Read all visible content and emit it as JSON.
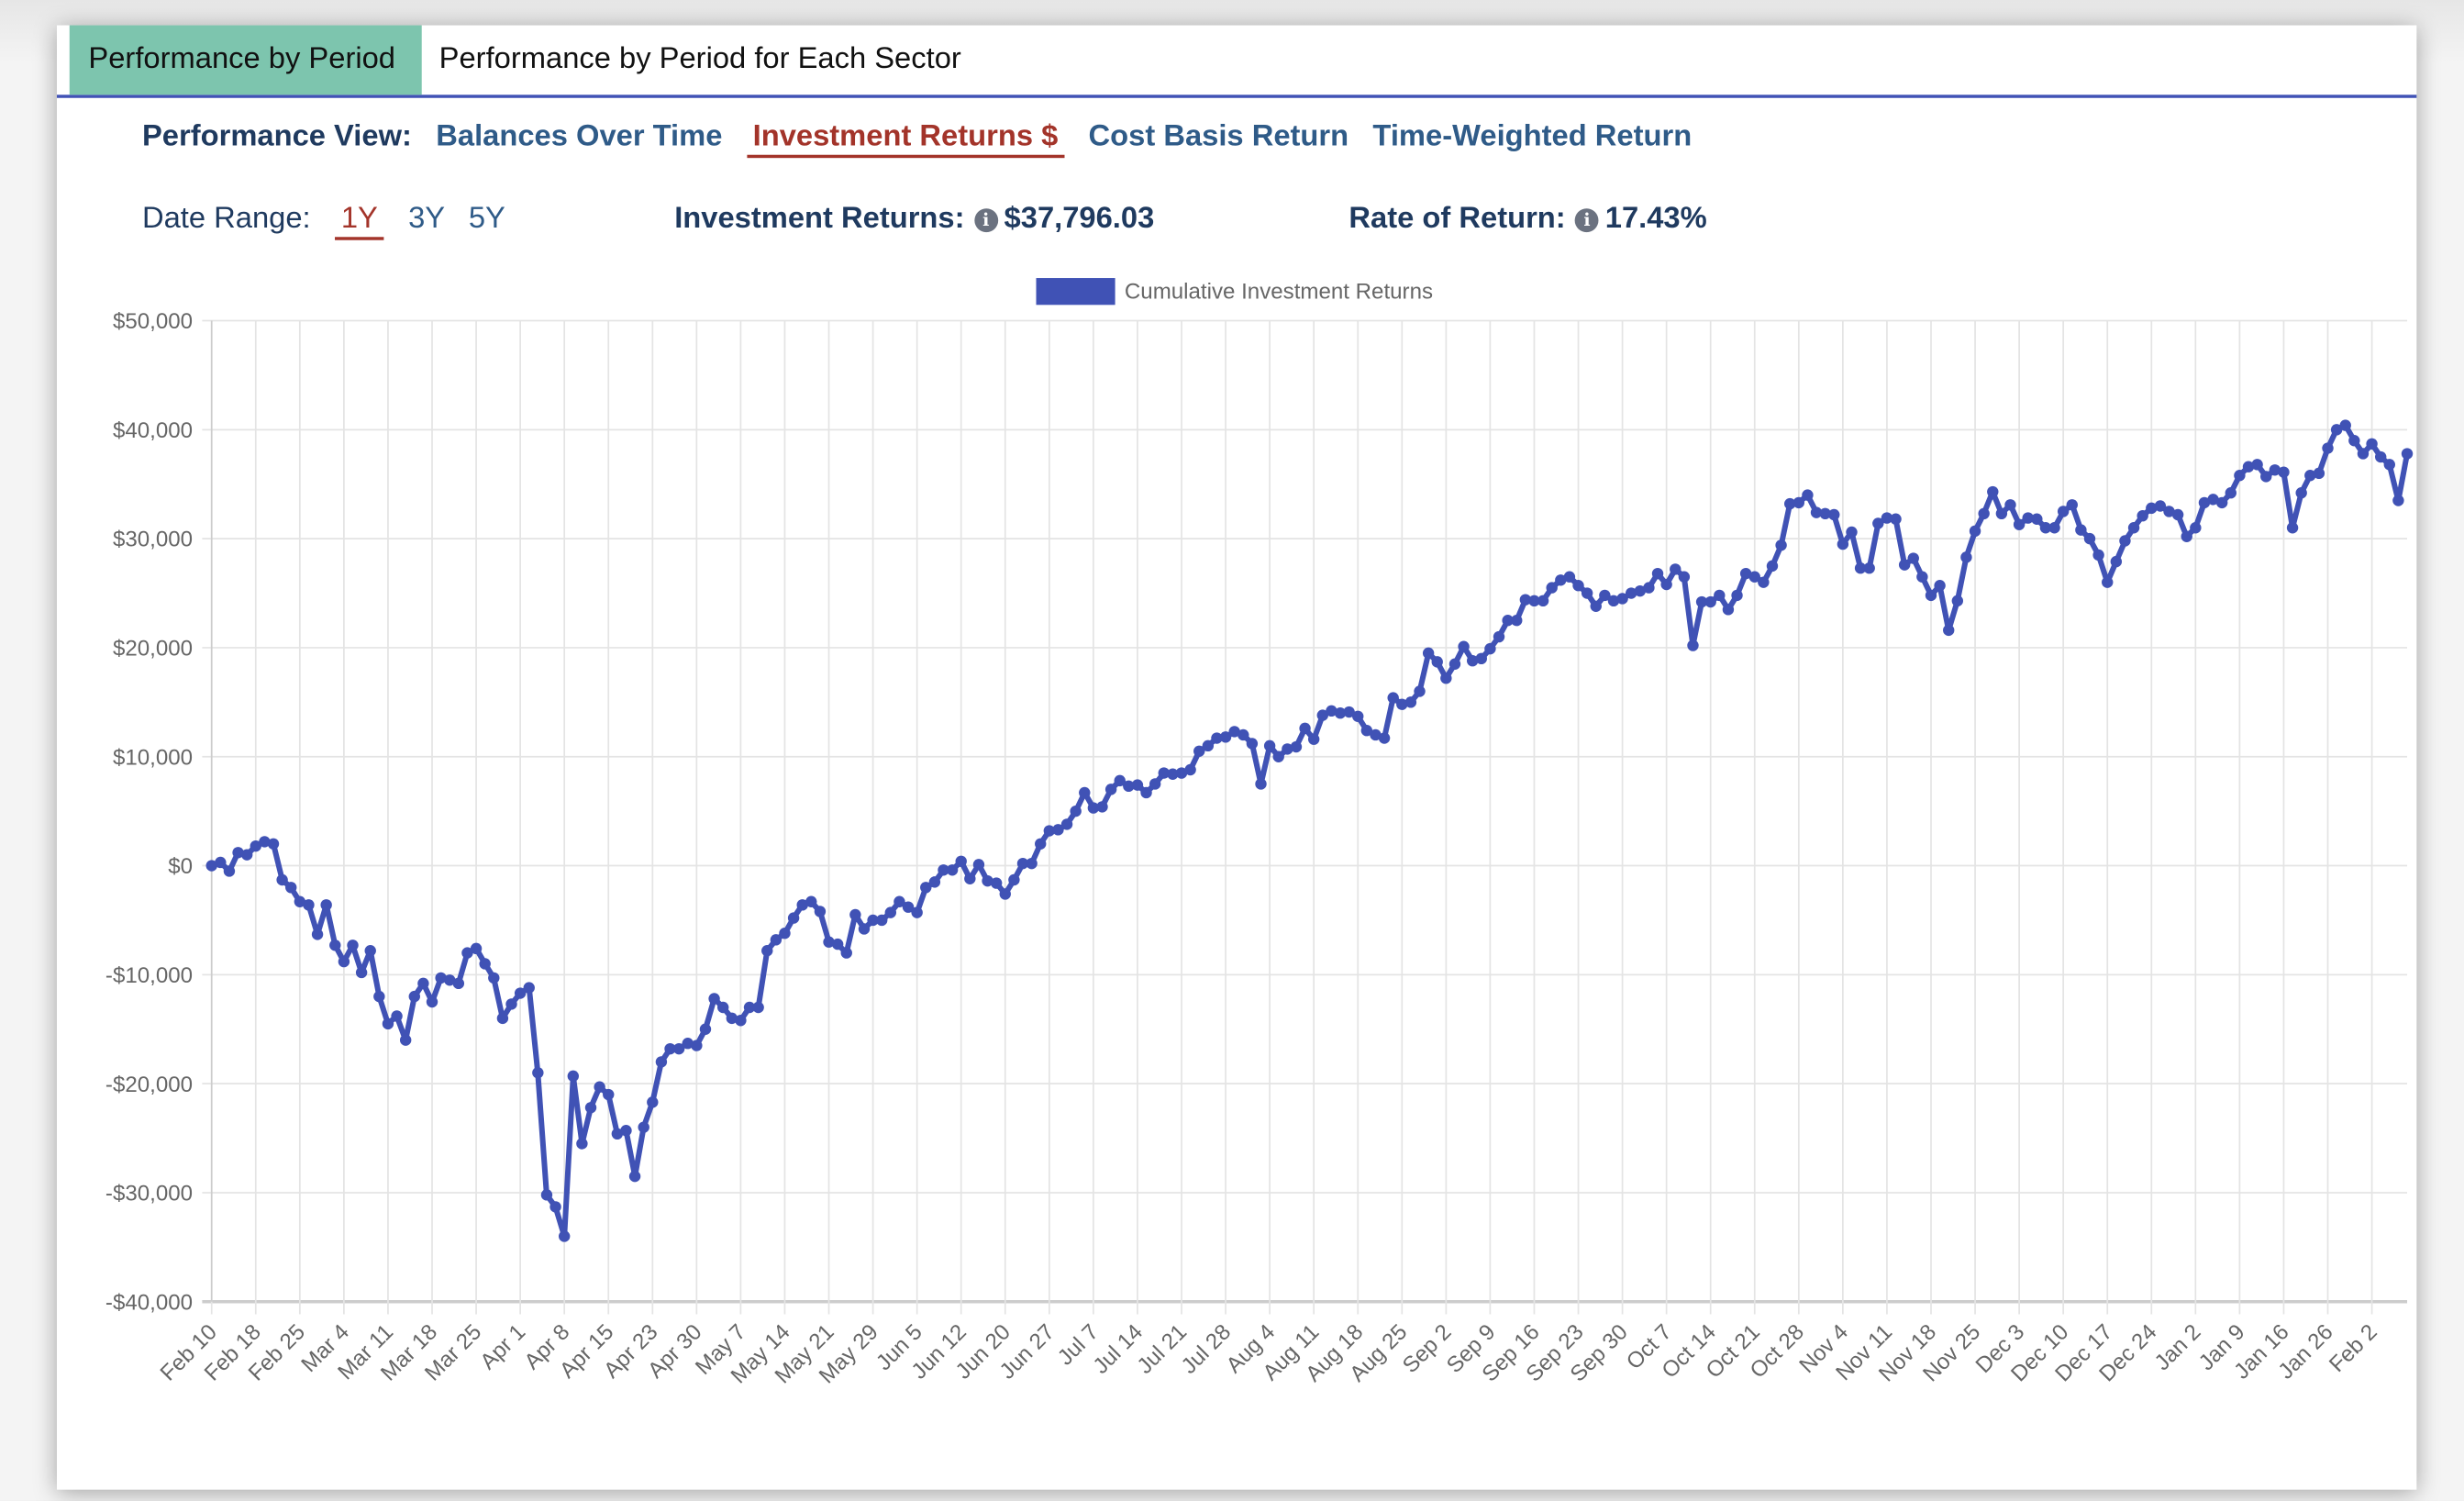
{
  "tabs": [
    {
      "label": "Performance by Period",
      "active": true
    },
    {
      "label": "Performance by Period for Each Sector",
      "active": false
    }
  ],
  "view": {
    "label": "Performance View:",
    "options": [
      "Balances Over Time",
      "Investment Returns $",
      "Cost Basis Return",
      "Time-Weighted Return"
    ],
    "selected": "Investment Returns $"
  },
  "range": {
    "label": "Date Range:",
    "options": [
      "1Y",
      "3Y",
      "5Y"
    ],
    "selected": "1Y"
  },
  "stats": {
    "returns_label": "Investment Returns:",
    "returns_value": "$37,796.03",
    "rate_label": "Rate of Return:",
    "rate_value": "17.43%"
  },
  "colors": {
    "accent": "#4052b5",
    "tab_active": "#7dc5ae",
    "selected": "#a3342a",
    "link": "#2f5b88"
  },
  "icons": {
    "info": "info-circle-icon"
  },
  "chart_data": {
    "type": "line",
    "legend": {
      "label": "Cumulative Investment Returns",
      "placement": "top-center"
    },
    "series": [
      {
        "name": "Cumulative Investment Returns",
        "color": "#4052b5"
      }
    ],
    "ylim": [
      -40000,
      50000
    ],
    "yticks": [
      50000,
      40000,
      30000,
      20000,
      10000,
      0,
      -10000,
      -20000,
      -30000,
      -40000
    ],
    "ytick_labels": [
      "$50,000",
      "$40,000",
      "$30,000",
      "$20,000",
      "$10,000",
      "$0",
      "-$10,000",
      "-$20,000",
      "-$30,000",
      "-$40,000"
    ],
    "xtick_labels": [
      "Feb 10",
      "Feb 18",
      "Feb 25",
      "Mar 4",
      "Mar 11",
      "Mar 18",
      "Mar 25",
      "Apr 1",
      "Apr 8",
      "Apr 15",
      "Apr 23",
      "Apr 30",
      "May 7",
      "May 14",
      "May 21",
      "May 29",
      "Jun 5",
      "Jun 12",
      "Jun 20",
      "Jun 27",
      "Jul 7",
      "Jul 14",
      "Jul 21",
      "Jul 28",
      "Aug 4",
      "Aug 11",
      "Aug 18",
      "Aug 25",
      "Sep 2",
      "Sep 9",
      "Sep 16",
      "Sep 23",
      "Sep 30",
      "Oct 7",
      "Oct 14",
      "Oct 21",
      "Oct 28",
      "Nov 4",
      "Nov 11",
      "Nov 18",
      "Nov 25",
      "Dec 3",
      "Dec 10",
      "Dec 17",
      "Dec 24",
      "Jan 2",
      "Jan 9",
      "Jan 16",
      "Jan 26",
      "Feb 2"
    ],
    "points_per_tick": 5,
    "grid": true,
    "values": [
      0,
      300,
      -500,
      1200,
      1000,
      1800,
      2200,
      2000,
      -1300,
      -2000,
      -3300,
      -3600,
      -6300,
      -3600,
      -7300,
      -8800,
      -7300,
      -9800,
      -7800,
      -12000,
      -14500,
      -13800,
      -16000,
      -12000,
      -10800,
      -12500,
      -10300,
      -10500,
      -10800,
      -8000,
      -7600,
      -9000,
      -10300,
      -14000,
      -12700,
      -11700,
      -11200,
      -19000,
      -30200,
      -31300,
      -34000,
      -19300,
      -25500,
      -22200,
      -20300,
      -21000,
      -24600,
      -24300,
      -28500,
      -24000,
      -21700,
      -18000,
      -16800,
      -16800,
      -16300,
      -16500,
      -15000,
      -12200,
      -13000,
      -14000,
      -14200,
      -13000,
      -13000,
      -7800,
      -6800,
      -6200,
      -4800,
      -3600,
      -3300,
      -4200,
      -7000,
      -7200,
      -8000,
      -4500,
      -5800,
      -5000,
      -5000,
      -4300,
      -3300,
      -3800,
      -4300,
      -2000,
      -1500,
      -400,
      -400,
      400,
      -1200,
      100,
      -1400,
      -1600,
      -2600,
      -1300,
      200,
      200,
      2000,
      3200,
      3300,
      3800,
      5000,
      6700,
      5300,
      5400,
      7000,
      7800,
      7300,
      7400,
      6700,
      7500,
      8500,
      8400,
      8500,
      8800,
      10500,
      11000,
      11700,
      11800,
      12300,
      12000,
      11200,
      7500,
      11000,
      10000,
      10700,
      10900,
      12600,
      11600,
      13800,
      14200,
      14000,
      14100,
      13700,
      12400,
      12000,
      11700,
      15400,
      14800,
      15000,
      16000,
      19500,
      18700,
      17200,
      18500,
      20100,
      18800,
      19000,
      19900,
      21000,
      22500,
      22500,
      24400,
      24300,
      24300,
      25500,
      26200,
      26500,
      25700,
      25000,
      23800,
      24800,
      24300,
      24500,
      25000,
      25200,
      25500,
      26800,
      25800,
      27200,
      26500,
      20200,
      24200,
      24200,
      24800,
      23500,
      24800,
      26800,
      26500,
      26000,
      27500,
      29400,
      33200,
      33300,
      34000,
      32400,
      32300,
      32200,
      29500,
      30600,
      27300,
      27300,
      31400,
      31900,
      31800,
      27600,
      28200,
      26500,
      24800,
      25700,
      21600,
      24300,
      28300,
      30700,
      32300,
      34300,
      32300,
      33100,
      31300,
      31900,
      31800,
      31000,
      31000,
      32500,
      33100,
      30800,
      30000,
      28500,
      26000,
      27900,
      29800,
      31000,
      32100,
      32800,
      33000,
      32500,
      32200,
      30200,
      31000,
      33300,
      33600,
      33300,
      34200,
      35800,
      36600,
      36800,
      35700,
      36300,
      36100,
      31000,
      34200,
      35800,
      36000,
      38300,
      40000,
      40400,
      39000,
      37800,
      38700,
      37500,
      36800,
      33500,
      37796.03
    ]
  }
}
